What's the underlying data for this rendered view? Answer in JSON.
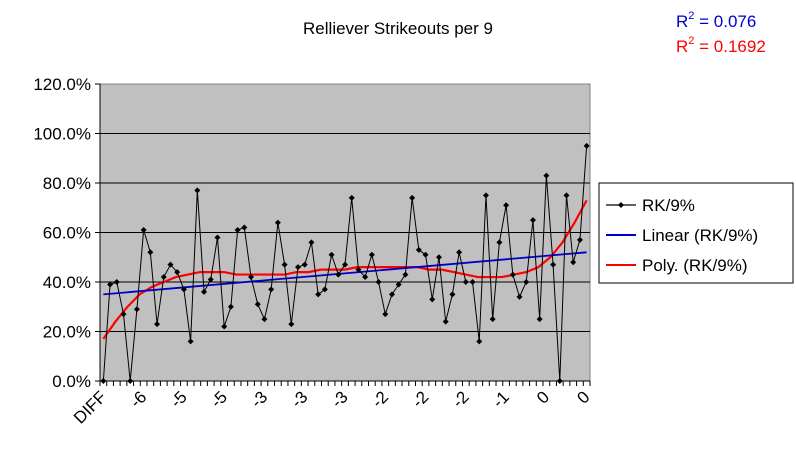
{
  "chart_data": {
    "type": "line",
    "title": "Relliever Strikeouts per 9",
    "y_tick_labels": [
      "0.0%",
      "20.0%",
      "40.0%",
      "60.0%",
      "80.0%",
      "100.0%",
      "120.0%"
    ],
    "ylim": [
      0,
      120
    ],
    "x_tick_labels": [
      "DIFF",
      "-6",
      "-5",
      "-5",
      "-3",
      "-3",
      "-3",
      "-2",
      "-2",
      "-2",
      "-1",
      "0",
      "0"
    ],
    "grid": true,
    "legend_position": "right",
    "series": [
      {
        "name": "RK/9%",
        "color": "#000000",
        "marker": "diamond",
        "values": [
          0,
          39,
          40,
          27,
          0,
          29,
          61,
          52,
          23,
          42,
          47,
          44,
          37,
          16,
          77,
          36,
          41,
          58,
          22,
          30,
          61,
          62,
          42,
          31,
          25,
          37,
          64,
          47,
          23,
          46,
          47,
          56,
          35,
          37,
          51,
          43,
          47,
          74,
          45,
          42,
          51,
          40,
          27,
          35,
          39,
          43,
          74,
          53,
          51,
          33,
          50,
          24,
          35,
          52,
          40,
          40,
          16,
          75,
          25,
          56,
          71,
          43,
          34,
          40,
          65,
          25,
          83,
          47,
          0,
          75,
          48,
          57,
          95
        ]
      },
      {
        "name": "Linear (RK/9%)",
        "color": "#0000cc",
        "values": [
          35,
          52
        ]
      },
      {
        "name": "Poly. (RK/9%)",
        "color": "#ff0000",
        "values": [
          17,
          24,
          30,
          35,
          38,
          40,
          42,
          43,
          44,
          44,
          44,
          43,
          43,
          43,
          43,
          43,
          44,
          44,
          45,
          45,
          45,
          46,
          46,
          46,
          46,
          46,
          46,
          45,
          45,
          44,
          43,
          42,
          42,
          42,
          43,
          44,
          46,
          50,
          56,
          64,
          73
        ]
      }
    ],
    "annotations": [
      {
        "text_prefix": "R",
        "superscript": "2",
        "text_suffix": " = 0.076",
        "color": "#0000cc"
      },
      {
        "text_prefix": "R",
        "superscript": "2",
        "text_suffix": " = 0.1692",
        "color": "#ff0000"
      }
    ]
  }
}
